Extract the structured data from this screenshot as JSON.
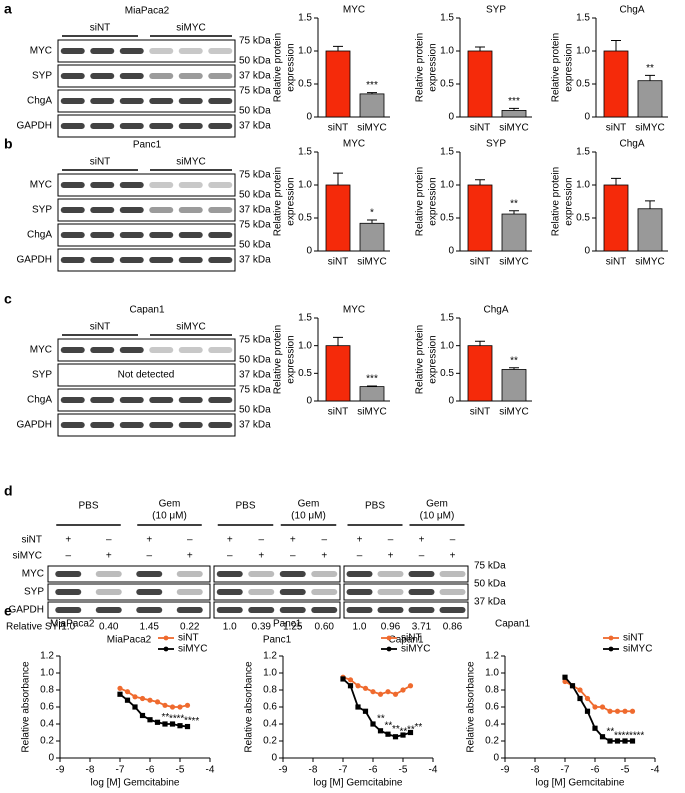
{
  "blots": [
    {
      "letter": "a",
      "cell_line": "MiaPaca2",
      "groups": [
        "siNT",
        "siMYC"
      ],
      "rows": [
        "MYC",
        "SYP",
        "ChgA",
        "GAPDH"
      ],
      "markers": [
        "75 kDa",
        "50 kDa",
        "37 kDa",
        "75 kDa",
        "50 kDa",
        "37 kDa"
      ]
    },
    {
      "letter": "b",
      "cell_line": "Panc1",
      "groups": [
        "siNT",
        "siMYC"
      ],
      "rows": [
        "MYC",
        "SYP",
        "ChgA",
        "GAPDH"
      ],
      "markers": [
        "75 kDa",
        "50 kDa",
        "37 kDa",
        "75 kDa",
        "50 kDa",
        "37 kDa"
      ]
    },
    {
      "letter": "c",
      "cell_line": "Capan1",
      "groups": [
        "siNT",
        "siMYC"
      ],
      "rows": [
        "MYC",
        "SYP",
        "ChgA",
        "GAPDH"
      ],
      "note": "Not detected",
      "markers": [
        "75 kDa",
        "50 kDa",
        "37 kDa",
        "75 kDa",
        "50 kDa",
        "37 kDa"
      ]
    }
  ],
  "treatment_blot": {
    "letter": "d",
    "conditions": [
      "PBS",
      [
        "Gem",
        "(10 μM)"
      ]
    ],
    "sign_rows": [
      {
        "label": "siNT",
        "signs": [
          "+",
          "–",
          "+",
          "–"
        ]
      },
      {
        "label": "siMYC",
        "signs": [
          "–",
          "+",
          "–",
          "+"
        ]
      }
    ],
    "proteins": [
      "MYC",
      "SYP",
      "GAPDH"
    ],
    "markers": [
      "75 kDa",
      "50 kDa",
      "37 kDa"
    ],
    "relative_label": "Relative SYP",
    "cell_lines": [
      {
        "name": "MiaPaca2",
        "relative_syp": [
          "1.0",
          "0.40",
          "1.45",
          "0.22"
        ]
      },
      {
        "name": "Panc1",
        "relative_syp": [
          "1.0",
          "0.39",
          "1.25",
          "0.60"
        ]
      },
      {
        "name": "Capan1",
        "relative_syp": [
          "1.0",
          "0.96",
          "3.71",
          "0.86"
        ]
      }
    ]
  },
  "panel_e_letter": "e",
  "chart_data": [
    {
      "type": "bar",
      "title": "MYC",
      "ylabel": [
        "Relative protein",
        "expression"
      ],
      "categories": [
        "siNT",
        "siMYC"
      ],
      "values": [
        1.0,
        0.35
      ],
      "errors": [
        0.07,
        0.02
      ],
      "colors": [
        "#f52a0a",
        "#999999"
      ],
      "annotations": [
        null,
        "***"
      ],
      "ylim": [
        0,
        1.5
      ],
      "yticks": [
        0,
        0.5,
        {
          "value": 1,
          "label": "1.0"
        },
        1.5
      ]
    },
    {
      "type": "bar",
      "title": "SYP",
      "ylabel": [
        "Relative protein",
        "expression"
      ],
      "categories": [
        "siNT",
        "siMYC"
      ],
      "values": [
        1.0,
        0.1
      ],
      "errors": [
        0.06,
        0.03
      ],
      "colors": [
        "#f52a0a",
        "#999999"
      ],
      "annotations": [
        null,
        "***"
      ],
      "ylim": [
        0,
        1.5
      ],
      "yticks": [
        0,
        0.5,
        {
          "value": 1,
          "label": "1.0"
        },
        1.5
      ]
    },
    {
      "type": "bar",
      "title": "ChgA",
      "ylabel": [
        "Relative protein",
        "expression"
      ],
      "categories": [
        "siNT",
        "siMYC"
      ],
      "values": [
        1.0,
        0.55
      ],
      "errors": [
        0.16,
        0.08
      ],
      "colors": [
        "#f52a0a",
        "#999999"
      ],
      "annotations": [
        null,
        "**"
      ],
      "ylim": [
        0,
        1.5
      ],
      "yticks": [
        0,
        0.5,
        {
          "value": 1,
          "label": "1.0"
        },
        1.5
      ]
    },
    {
      "type": "bar",
      "title": "MYC",
      "ylabel": [
        "Relative protein",
        "expression"
      ],
      "categories": [
        "siNT",
        "siMYC"
      ],
      "values": [
        1.0,
        0.42
      ],
      "errors": [
        0.18,
        0.05
      ],
      "colors": [
        "#f52a0a",
        "#999999"
      ],
      "annotations": [
        null,
        "*"
      ],
      "ylim": [
        0,
        1.5
      ],
      "yticks": [
        0,
        0.5,
        {
          "value": 1,
          "label": "1.0"
        },
        1.5
      ]
    },
    {
      "type": "bar",
      "title": "SYP",
      "ylabel": [
        "Relative protein",
        "expression"
      ],
      "categories": [
        "siNT",
        "siMYC"
      ],
      "values": [
        1.0,
        0.56
      ],
      "errors": [
        0.08,
        0.05
      ],
      "colors": [
        "#f52a0a",
        "#999999"
      ],
      "annotations": [
        null,
        "**"
      ],
      "ylim": [
        0,
        1.5
      ],
      "yticks": [
        0,
        0.5,
        {
          "value": 1,
          "label": "1.0"
        },
        1.5
      ]
    },
    {
      "type": "bar",
      "title": "ChgA",
      "ylabel": [
        "Relative protein",
        "expression"
      ],
      "categories": [
        "siNT",
        "siMYC"
      ],
      "values": [
        1.0,
        0.64
      ],
      "errors": [
        0.1,
        0.12
      ],
      "colors": [
        "#f52a0a",
        "#999999"
      ],
      "ylim": [
        0,
        1.5
      ],
      "yticks": [
        0,
        0.5,
        {
          "value": 1,
          "label": "1.0"
        },
        1.5
      ]
    },
    {
      "type": "bar",
      "title": "MYC",
      "ylabel": [
        "Relative protein",
        "expression"
      ],
      "categories": [
        "siNT",
        "siMYC"
      ],
      "values": [
        1.0,
        0.26
      ],
      "errors": [
        0.15,
        0.01
      ],
      "colors": [
        "#f52a0a",
        "#999999"
      ],
      "annotations": [
        null,
        "***"
      ],
      "ylim": [
        0,
        1.5
      ],
      "yticks": [
        0,
        0.5,
        {
          "value": 1,
          "label": "1.0"
        },
        1.5
      ]
    },
    {
      "type": "bar",
      "title": "ChgA",
      "ylabel": [
        "Relative protein",
        "expression"
      ],
      "categories": [
        "siNT",
        "siMYC"
      ],
      "values": [
        1.0,
        0.57
      ],
      "errors": [
        0.08,
        0.03
      ],
      "colors": [
        "#f52a0a",
        "#999999"
      ],
      "annotations": [
        null,
        "**"
      ],
      "ylim": [
        0,
        1.5
      ],
      "yticks": [
        0,
        0.5,
        {
          "value": 1,
          "label": "1.0"
        },
        1.5
      ]
    },
    {
      "type": "line",
      "title": "MiaPaca2",
      "xlabel": "log [M] Gemcitabine",
      "ylabel": "Relative absorbance",
      "x": [
        -7,
        -6.75,
        -6.5,
        -6.25,
        -6,
        -5.75,
        -5.5,
        -5.25,
        -5,
        -4.75
      ],
      "series": [
        {
          "name": "siNT",
          "color": "#ef6a2e",
          "values": [
            0.82,
            0.78,
            0.72,
            0.7,
            0.68,
            0.66,
            0.62,
            0.6,
            0.6,
            0.62
          ]
        },
        {
          "name": "siMYC",
          "color": "#000000",
          "values": [
            0.75,
            0.68,
            0.6,
            0.5,
            0.45,
            0.42,
            0.4,
            0.4,
            0.38,
            0.37
          ],
          "annotations": [
            null,
            null,
            null,
            null,
            null,
            "**",
            "**",
            "**",
            "**",
            "**"
          ]
        }
      ],
      "xlim": [
        -9,
        -4
      ],
      "xticks": [
        -9,
        -8,
        -7,
        -6,
        -5,
        -4
      ],
      "ylim": [
        0,
        1.2
      ],
      "yticks": [
        0,
        0.2,
        0.4,
        0.6,
        0.8,
        {
          "value": 1,
          "label": "1.0"
        },
        1.2
      ],
      "legend": "upper right"
    },
    {
      "type": "line",
      "title": "Panc1",
      "xlabel": "log [M] Gemcitabine",
      "ylabel": "Relative absorbance",
      "x": [
        -7,
        -6.75,
        -6.5,
        -6.25,
        -6,
        -5.75,
        -5.5,
        -5.25,
        -5,
        -4.75
      ],
      "series": [
        {
          "name": "siNT",
          "color": "#ef6a2e",
          "values": [
            0.95,
            0.92,
            0.85,
            0.82,
            0.78,
            0.75,
            0.78,
            0.75,
            0.8,
            0.85
          ]
        },
        {
          "name": "siMYC",
          "color": "#000000",
          "values": [
            0.93,
            0.85,
            0.6,
            0.55,
            0.4,
            0.32,
            0.28,
            0.25,
            0.27,
            0.3
          ],
          "annotations": [
            null,
            null,
            null,
            null,
            "**",
            "**",
            "**",
            "**",
            "**",
            "**"
          ]
        }
      ],
      "xlim": [
        -9,
        -4
      ],
      "xticks": [
        -9,
        -8,
        -7,
        -6,
        -5,
        -4
      ],
      "ylim": [
        0,
        1.2
      ],
      "yticks": [
        0,
        0.2,
        0.4,
        0.6,
        0.8,
        {
          "value": 1,
          "label": "1.0"
        },
        1.2
      ],
      "legend": "upper right"
    },
    {
      "type": "line",
      "title": "Capan1",
      "xlabel": "log [M] Gemcitabine",
      "ylabel": "Relative absorbance",
      "x": [
        -7,
        -6.75,
        -6.5,
        -6.25,
        -6,
        -5.75,
        -5.5,
        -5.25,
        -5,
        -4.75
      ],
      "series": [
        {
          "name": "siNT",
          "color": "#ef6a2e",
          "values": [
            0.9,
            0.85,
            0.8,
            0.7,
            0.6,
            0.6,
            0.55,
            0.55,
            0.55,
            0.55
          ]
        },
        {
          "name": "siMYC",
          "color": "#000000",
          "values": [
            0.95,
            0.85,
            0.7,
            0.55,
            0.35,
            0.25,
            0.2,
            0.2,
            0.2,
            0.2
          ],
          "annotations": [
            null,
            null,
            null,
            null,
            null,
            "**",
            "**",
            "**",
            "**",
            "**"
          ]
        }
      ],
      "xlim": [
        -9,
        -4
      ],
      "xticks": [
        -9,
        -8,
        -7,
        -6,
        -5,
        -4
      ],
      "ylim": [
        0,
        1.2
      ],
      "yticks": [
        0,
        0.2,
        0.4,
        0.6,
        0.8,
        {
          "value": 1,
          "label": "1.0"
        },
        1.2
      ],
      "legend": "upper right"
    }
  ]
}
